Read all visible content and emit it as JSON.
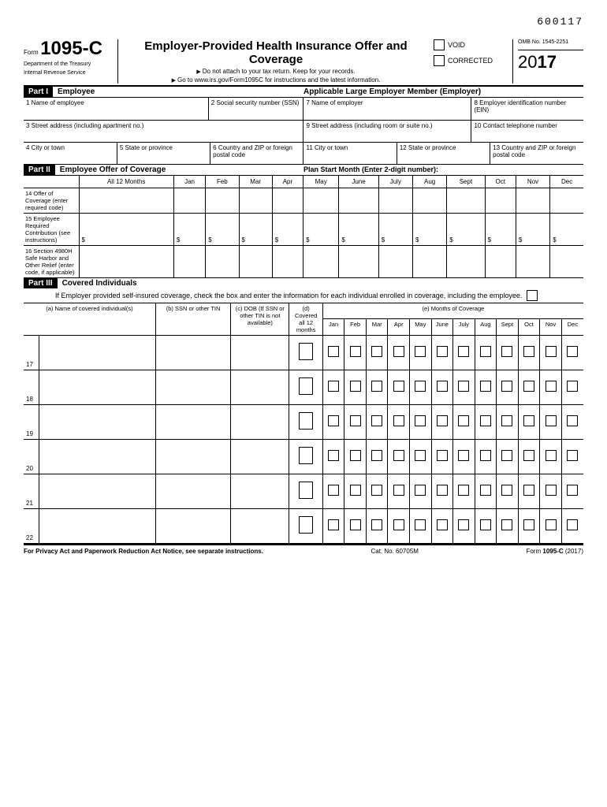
{
  "top_code": "600117",
  "header": {
    "form_label": "Form",
    "form_number": "1095-C",
    "dept1": "Department of the Treasury",
    "dept2": "Internal Revenue Service",
    "title": "Employer-Provided Health Insurance Offer and Coverage",
    "sub1": "Do not attach to your tax return. Keep for your records.",
    "sub2": "Go to www.irs.gov/Form1095C for instructions and the latest information.",
    "void": "VOID",
    "corrected": "CORRECTED",
    "omb": "OMB No. 1545-2251",
    "year_prefix": "20",
    "year_suffix": "17"
  },
  "part1": {
    "tag": "Part I",
    "title_left": "Employee",
    "title_right": "Applicable Large Employer Member (Employer)",
    "f1": "1  Name of employee",
    "f2": "2  Social security number (SSN)",
    "f7": "7  Name of employer",
    "f8": "8  Employer identification number (EIN)",
    "f3": "3  Street address (including apartment no.)",
    "f9": "9  Street address (including room or suite no.)",
    "f10": "10 Contact telephone number",
    "f4": "4  City or town",
    "f5": "5  State or province",
    "f6": "6  Country and ZIP or foreign postal code",
    "f11": "11 City or town",
    "f12": "12  State or province",
    "f13": "13 Country and ZIP or foreign postal code"
  },
  "part2": {
    "tag": "Part II",
    "title": "Employee Offer of Coverage",
    "plan_start": "Plan Start Month (Enter 2-digit number):",
    "cols": [
      "All 12 Months",
      "Jan",
      "Feb",
      "Mar",
      "Apr",
      "May",
      "June",
      "July",
      "Aug",
      "Sept",
      "Oct",
      "Nov",
      "Dec"
    ],
    "r14": "14 Offer of Coverage (enter required code)",
    "r15": "15 Employee Required Contribution (see instructions)",
    "r16": "16 Section 4980H Safe Harbor and Other Relief (enter code, if applicable)",
    "dollar": "$"
  },
  "part3": {
    "tag": "Part III",
    "title": "Covered Individuals",
    "instr": "If Employer provided self-insured coverage, check the box and enter the information for each individual enrolled in coverage, including the employee.",
    "ha": "(a) Name of covered individual(s)",
    "hb": "(b) SSN or other TIN",
    "hc": "(c) DOB (If SSN or other TIN is not available)",
    "hd": "(d) Covered all 12 months",
    "he": "(e) Months of Coverage",
    "months": [
      "Jan",
      "Feb",
      "Mar",
      "Apr",
      "May",
      "June",
      "July",
      "Aug",
      "Sept",
      "Oct",
      "Nov",
      "Dec"
    ],
    "rows": [
      "17",
      "18",
      "19",
      "20",
      "21",
      "22"
    ]
  },
  "footer": {
    "left": "For Privacy Act and Paperwork Reduction Act Notice, see separate instructions.",
    "center": "Cat. No. 60705M",
    "right_label": "Form",
    "right_form": "1095-C",
    "right_year": "(2017)"
  }
}
